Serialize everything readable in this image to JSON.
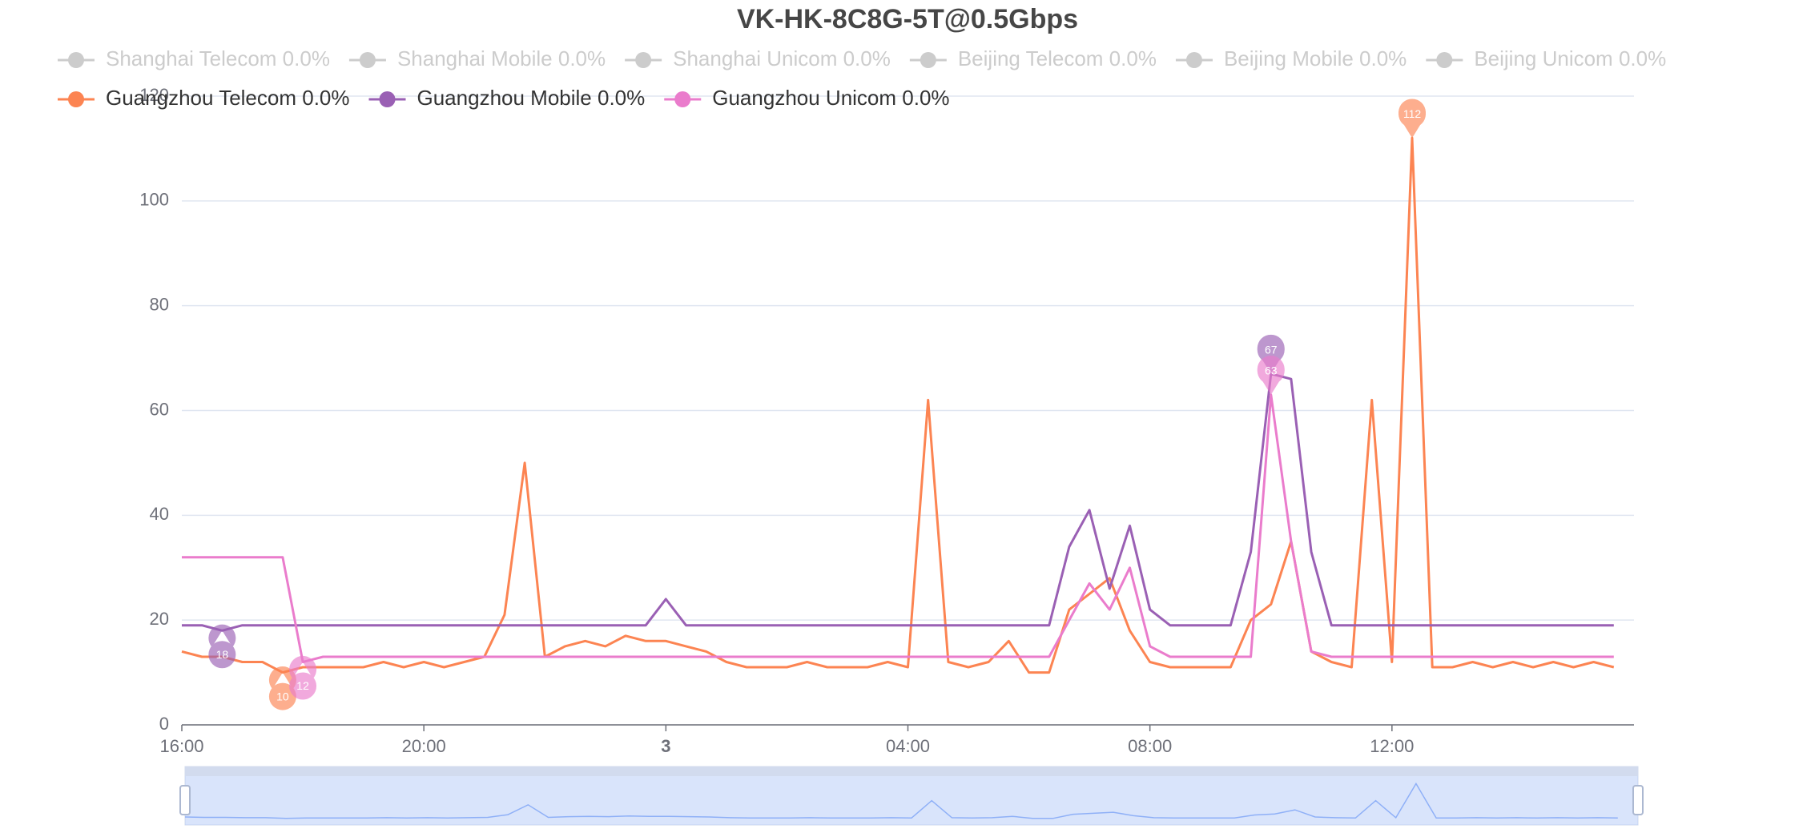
{
  "chart_data": {
    "type": "line",
    "title": "VK-HK-8C8G-5T@0.5Gbps",
    "x": [
      "16:00",
      "16:20",
      "16:40",
      "17:00",
      "17:20",
      "17:40",
      "18:00",
      "18:20",
      "18:40",
      "19:00",
      "19:20",
      "19:40",
      "20:00",
      "20:20",
      "20:40",
      "21:00",
      "21:20",
      "21:40",
      "22:00",
      "22:20",
      "22:40",
      "23:00",
      "23:20",
      "23:40",
      "00:00",
      "00:20",
      "00:40",
      "01:00",
      "01:20",
      "01:40",
      "02:00",
      "02:20",
      "02:40",
      "03:00",
      "03:20",
      "03:40",
      "04:00",
      "04:20",
      "04:40",
      "05:00",
      "05:20",
      "05:40",
      "06:00",
      "06:20",
      "06:40",
      "07:00",
      "07:20",
      "07:40",
      "08:00",
      "08:20",
      "08:40",
      "09:00",
      "09:20",
      "09:40",
      "10:00",
      "10:20",
      "10:40",
      "11:00",
      "11:20",
      "11:40",
      "12:00",
      "12:20",
      "12:40",
      "13:00",
      "13:20",
      "13:40",
      "14:00",
      "14:20",
      "14:40",
      "15:00",
      "15:20",
      "15:40"
    ],
    "xticks": [
      "16:00",
      "20:00",
      {
        "value": "00:00",
        "label": "3"
      },
      "04:00",
      "08:00",
      "12:00"
    ],
    "ylim": [
      0,
      120
    ],
    "yticks": [
      0,
      20,
      40,
      60,
      80,
      100,
      120
    ],
    "grid": true,
    "series": [
      {
        "name": "Shanghai Telecom 0.0%",
        "color": "#cccccc",
        "visible": false
      },
      {
        "name": "Shanghai Mobile 0.0%",
        "color": "#cccccc",
        "visible": false
      },
      {
        "name": "Shanghai Unicom 0.0%",
        "color": "#cccccc",
        "visible": false
      },
      {
        "name": "Beijing Telecom 0.0%",
        "color": "#cccccc",
        "visible": false
      },
      {
        "name": "Beijing Mobile 0.0%",
        "color": "#cccccc",
        "visible": false
      },
      {
        "name": "Beijing Unicom 0.0%",
        "color": "#cccccc",
        "visible": false
      },
      {
        "name": "Guangzhou Telecom 0.0%",
        "color": "#fc8452",
        "visible": true,
        "values": [
          14,
          13,
          13,
          12,
          12,
          10,
          11,
          11,
          11,
          11,
          12,
          11,
          12,
          11,
          12,
          13,
          21,
          50,
          13,
          15,
          16,
          15,
          17,
          16,
          16,
          15,
          14,
          12,
          11,
          11,
          11,
          12,
          11,
          11,
          11,
          12,
          11,
          62,
          12,
          11,
          12,
          16,
          10,
          10,
          22,
          25,
          28,
          18,
          12,
          11,
          11,
          11,
          11,
          20,
          23,
          35,
          14,
          12,
          11,
          62,
          12,
          112,
          11,
          11,
          12,
          11,
          12,
          11,
          12,
          11,
          12,
          11
        ],
        "max": {
          "x": "12:20",
          "value": 112
        },
        "min": {
          "x": "17:40",
          "value": 10
        }
      },
      {
        "name": "Guangzhou Mobile 0.0%",
        "color": "#9a60b4",
        "visible": true,
        "values": [
          19,
          19,
          18,
          19,
          19,
          19,
          19,
          19,
          19,
          19,
          19,
          19,
          19,
          19,
          19,
          19,
          19,
          19,
          19,
          19,
          19,
          19,
          19,
          19,
          24,
          19,
          19,
          19,
          19,
          19,
          19,
          19,
          19,
          19,
          19,
          19,
          19,
          19,
          19,
          19,
          19,
          19,
          19,
          19,
          34,
          41,
          26,
          38,
          22,
          19,
          19,
          19,
          19,
          33,
          67,
          66,
          33,
          19,
          19,
          19,
          19,
          19,
          19,
          19,
          19,
          19,
          19,
          19,
          19,
          19,
          19,
          19
        ],
        "max": {
          "x": "10:00",
          "value": 67
        },
        "min": {
          "x": "16:40",
          "value": 18
        }
      },
      {
        "name": "Guangzhou Unicom 0.0%",
        "color": "#ea7ccc",
        "visible": true,
        "values": [
          32,
          32,
          32,
          32,
          32,
          32,
          12,
          13,
          13,
          13,
          13,
          13,
          13,
          13,
          13,
          13,
          13,
          13,
          13,
          13,
          13,
          13,
          13,
          13,
          13,
          13,
          13,
          13,
          13,
          13,
          13,
          13,
          13,
          13,
          13,
          13,
          13,
          13,
          13,
          13,
          13,
          13,
          13,
          13,
          20,
          27,
          22,
          30,
          15,
          13,
          13,
          13,
          13,
          13,
          63,
          35,
          14,
          13,
          13,
          13,
          13,
          13,
          13,
          13,
          13,
          13,
          13,
          13,
          13,
          13,
          13,
          13
        ],
        "max": {
          "x": "10:00",
          "value": 63
        },
        "min": {
          "x": "18:00",
          "value": 12
        }
      }
    ]
  }
}
